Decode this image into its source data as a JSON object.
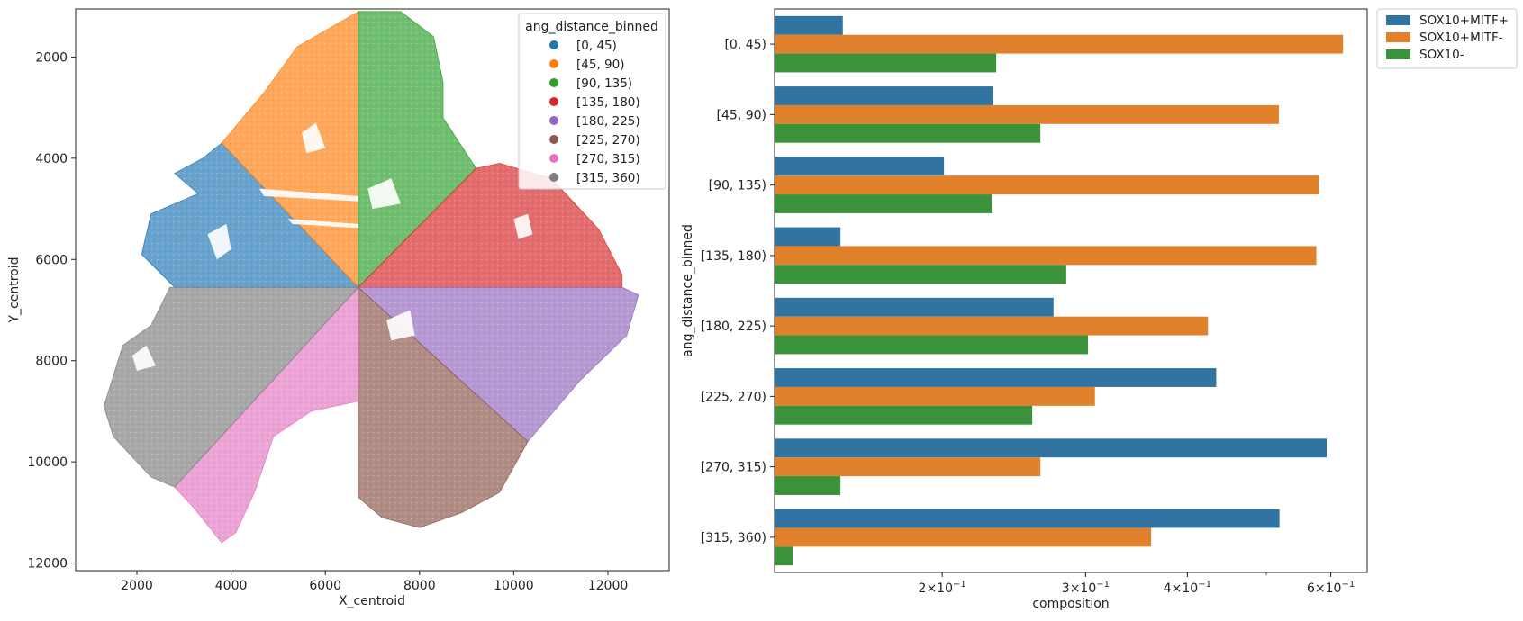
{
  "chart_data": [
    {
      "type": "scatter",
      "title": "",
      "xlabel": "X_centroid",
      "ylabel": "Y_centroid",
      "xlim": [
        700,
        13300
      ],
      "ylim": [
        1050,
        12150
      ],
      "y_inverted": true,
      "x_ticks": [
        2000,
        4000,
        6000,
        8000,
        10000,
        12000
      ],
      "y_ticks": [
        2000,
        4000,
        6000,
        8000,
        10000,
        12000
      ],
      "x_tick_labels": [
        "2000",
        "4000",
        "6000",
        "8000",
        "10000",
        "12000"
      ],
      "y_tick_labels": [
        "2000",
        "4000",
        "6000",
        "8000",
        "10000",
        "12000"
      ],
      "center": [
        6700,
        6550
      ],
      "legend": {
        "title": "ang_distance_binned",
        "placement": "top-right",
        "entries": [
          "[0, 45)",
          "[45, 90)",
          "[90, 135)",
          "[135, 180)",
          "[180, 225)",
          "[225, 270)",
          "[270, 315)",
          "[315, 360)"
        ]
      },
      "series": [
        {
          "name": "[0, 45)",
          "color": "#1f77b4",
          "region": [
            [
              6700,
              6550
            ],
            [
              3800,
              3700
            ],
            [
              3400,
              4000
            ],
            [
              2800,
              4300
            ],
            [
              3300,
              4700
            ],
            [
              2300,
              5100
            ],
            [
              2100,
              5900
            ],
            [
              2800,
              6550
            ]
          ]
        },
        {
          "name": "[45, 90)",
          "color": "#ff7f0e",
          "region": [
            [
              6700,
              6550
            ],
            [
              3800,
              3700
            ],
            [
              4700,
              2700
            ],
            [
              5400,
              1800
            ],
            [
              6700,
              1100
            ]
          ]
        },
        {
          "name": "[90, 135)",
          "color": "#2ca02c",
          "region": [
            [
              6700,
              6550
            ],
            [
              6700,
              1100
            ],
            [
              7600,
              1100
            ],
            [
              8300,
              1600
            ],
            [
              8500,
              2500
            ],
            [
              8500,
              3200
            ],
            [
              9200,
              4200
            ]
          ]
        },
        {
          "name": "[135, 180)",
          "color": "#d62728",
          "region": [
            [
              6700,
              6550
            ],
            [
              9200,
              4200
            ],
            [
              9700,
              4100
            ],
            [
              10800,
              4400
            ],
            [
              11800,
              5400
            ],
            [
              12300,
              6300
            ],
            [
              12300,
              6550
            ]
          ]
        },
        {
          "name": "[180, 225)",
          "color": "#9467bd",
          "region": [
            [
              6700,
              6550
            ],
            [
              12300,
              6550
            ],
            [
              12650,
              6700
            ],
            [
              12400,
              7500
            ],
            [
              11400,
              8400
            ],
            [
              10300,
              9600
            ]
          ]
        },
        {
          "name": "[225, 270)",
          "color": "#8c564b",
          "region": [
            [
              6700,
              6550
            ],
            [
              10300,
              9600
            ],
            [
              9700,
              10600
            ],
            [
              8900,
              11000
            ],
            [
              8000,
              11300
            ],
            [
              7200,
              11100
            ],
            [
              6700,
              10700
            ]
          ]
        },
        {
          "name": "[270, 315)",
          "color": "#e377c2",
          "region": [
            [
              6700,
              6550
            ],
            [
              6700,
              8800
            ],
            [
              5700,
              9000
            ],
            [
              4900,
              9500
            ],
            [
              4500,
              10600
            ],
            [
              4100,
              11400
            ],
            [
              3800,
              11600
            ],
            [
              3200,
              10900
            ],
            [
              2800,
              10500
            ]
          ]
        },
        {
          "name": "[315, 360)",
          "color": "#7f7f7f",
          "region": [
            [
              6700,
              6550
            ],
            [
              2800,
              10500
            ],
            [
              2300,
              10300
            ],
            [
              1500,
              9500
            ],
            [
              1300,
              8900
            ],
            [
              1700,
              7700
            ],
            [
              2300,
              7300
            ],
            [
              2700,
              6550
            ]
          ]
        }
      ]
    },
    {
      "type": "bar",
      "orientation": "horizontal",
      "title": "",
      "xlabel": "composition",
      "ylabel": "ang_distance_binned",
      "xscale": "log",
      "xlim": [
        0.1245,
        0.665
      ],
      "x_ticks": [
        0.2,
        0.3,
        0.4,
        0.6
      ],
      "x_tick_labels": [
        {
          "base": "2×10",
          "exp": "−1"
        },
        {
          "base": "3×10",
          "exp": "−1"
        },
        {
          "base": "4×10",
          "exp": "−1"
        },
        {
          "base": "6×10",
          "exp": "−1"
        }
      ],
      "categories": [
        "[0, 45)",
        "[45, 90)",
        "[90, 135)",
        "[135, 180)",
        "[180, 225)",
        "[225, 270)",
        "[270, 315)",
        "[315, 360)"
      ],
      "legend": {
        "title": "",
        "placement": "outside-top-right",
        "entries": [
          "SOX10+MITF+",
          "SOX10+MITF-",
          "SOX10-"
        ]
      },
      "series": [
        {
          "name": "SOX10+MITF+",
          "color": "#3274a1",
          "values": [
            0.151,
            0.231,
            0.201,
            0.15,
            0.274,
            0.434,
            0.593,
            0.519
          ]
        },
        {
          "name": "SOX10+MITF-",
          "color": "#e1812c",
          "values": [
            0.621,
            0.518,
            0.58,
            0.576,
            0.424,
            0.308,
            0.264,
            0.361
          ]
        },
        {
          "name": "SOX10-",
          "color": "#3a923a",
          "values": [
            0.233,
            0.264,
            0.23,
            0.284,
            0.302,
            0.258,
            0.15,
            0.131
          ]
        }
      ]
    }
  ]
}
